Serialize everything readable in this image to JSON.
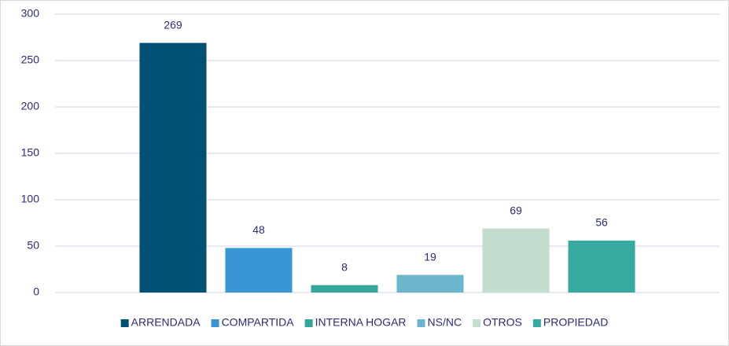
{
  "chart_data": {
    "type": "bar",
    "categories": [
      null
    ],
    "series": [
      {
        "name": "ARRENDADA",
        "color": "#005073",
        "values": [
          269
        ]
      },
      {
        "name": "COMPARTIDA",
        "color": "#3a95d4",
        "values": [
          48
        ]
      },
      {
        "name": "INTERNA HOGAR",
        "color": "#33a89a",
        "values": [
          8
        ]
      },
      {
        "name": "NS/NC",
        "color": "#6cb5cd",
        "values": [
          19
        ]
      },
      {
        "name": "OTROS",
        "color": "#c3dccd",
        "values": [
          69
        ]
      },
      {
        "name": "PROPIEDAD",
        "color": "#36a9a0",
        "values": [
          56
        ]
      }
    ],
    "ylim": [
      0,
      300
    ],
    "yticks": [
      0,
      50,
      100,
      150,
      200,
      250,
      300
    ],
    "grid": true,
    "legend": "bottom"
  }
}
